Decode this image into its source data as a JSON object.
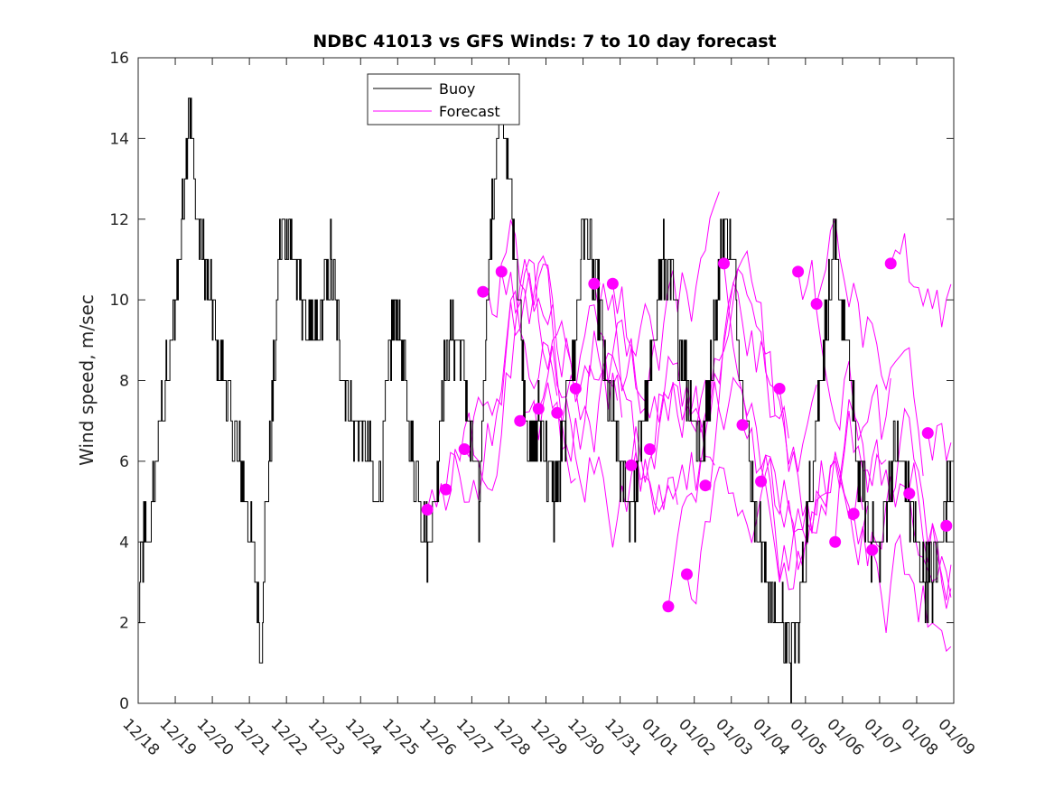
{
  "colors": {
    "buoy": "#000000",
    "forecast": "#ff00ff",
    "axes": "#262626",
    "background": "#ffffff"
  },
  "chart_data": {
    "type": "line",
    "title": "NDBC 41013 vs GFS Winds: 7 to 10 day forecast",
    "xlabel": "",
    "ylabel": "Wind speed, m/sec",
    "xlim": [
      0,
      22
    ],
    "ylim": [
      0,
      16
    ],
    "x_unit": "days since 12/18 00:00",
    "x_tick_labels": [
      "12/18",
      "12/19",
      "12/20",
      "12/21",
      "12/22",
      "12/23",
      "12/24",
      "12/25",
      "12/26",
      "12/27",
      "12/28",
      "12/29",
      "12/30",
      "12/31",
      "01/01",
      "01/02",
      "01/03",
      "01/04",
      "01/05",
      "01/06",
      "01/07",
      "01/08",
      "01/09"
    ],
    "y_ticks": [
      0,
      2,
      4,
      6,
      8,
      10,
      12,
      14,
      16
    ],
    "legend": {
      "position": "top-center",
      "entries": [
        "Buoy",
        "Forecast"
      ]
    },
    "buoy_keyframes": {
      "name": "Buoy",
      "x": [
        0.0,
        0.1,
        0.25,
        0.4,
        0.6,
        0.8,
        1.0,
        1.2,
        1.35,
        1.5,
        1.6,
        1.75,
        1.9,
        2.1,
        2.3,
        2.5,
        2.7,
        2.9,
        3.05,
        3.2,
        3.3,
        3.4,
        3.6,
        3.8,
        4.0,
        4.2,
        4.4,
        4.6,
        4.8,
        5.0,
        5.2,
        5.4,
        5.6,
        5.8,
        6.0,
        6.2,
        6.4,
        6.6,
        6.8,
        7.0,
        7.2,
        7.4,
        7.6,
        7.8,
        8.0,
        8.2,
        8.4,
        8.6,
        8.8,
        9.0,
        9.2,
        9.4,
        9.6,
        9.8,
        10.0,
        10.2,
        10.4,
        10.6,
        10.8,
        11.0,
        11.2,
        11.4,
        11.6,
        11.8,
        12.0,
        12.2,
        12.4,
        12.6,
        12.8,
        13.0,
        13.2,
        13.4,
        13.6,
        13.8,
        14.0,
        14.2,
        14.4,
        14.6,
        14.8,
        15.0,
        15.2,
        15.4,
        15.6,
        15.8,
        16.0,
        16.2,
        16.4,
        16.6,
        16.8,
        17.0,
        17.2,
        17.4,
        17.6,
        17.8,
        18.0,
        18.2,
        18.4,
        18.6,
        18.8,
        19.0,
        19.2,
        19.4,
        19.6,
        19.8,
        20.0,
        20.2,
        20.4,
        20.6,
        20.8,
        21.0,
        21.2,
        21.4,
        21.6,
        21.8,
        22.0
      ],
      "y": [
        2,
        4,
        4,
        5,
        7,
        8,
        10,
        12,
        15,
        13,
        12,
        11,
        10,
        9,
        8,
        7,
        6,
        5,
        4,
        3,
        1,
        4,
        7,
        11,
        12,
        11,
        10,
        9,
        9,
        10,
        11,
        9,
        8,
        7,
        7,
        6,
        5,
        6,
        9,
        10,
        8,
        6,
        5,
        4,
        5,
        8,
        9,
        9,
        8,
        6,
        5,
        10,
        13,
        15,
        13,
        11,
        8,
        6,
        7,
        6,
        5,
        6,
        8,
        9,
        12,
        11,
        10,
        8,
        7,
        6,
        5,
        5,
        7,
        8,
        10,
        11,
        10,
        9,
        8,
        7,
        6,
        8,
        10,
        12,
        11,
        9,
        7,
        5,
        4,
        3,
        2,
        2,
        1,
        2,
        4,
        6,
        8,
        10,
        11,
        10,
        8,
        6,
        5,
        4,
        4,
        5,
        6,
        6,
        5,
        4,
        3,
        3,
        4,
        5,
        6
      ]
    },
    "forecast_markers": {
      "name": "Forecast",
      "x": [
        7.8,
        8.3,
        8.8,
        9.3,
        9.8,
        10.3,
        10.8,
        11.3,
        11.8,
        12.3,
        12.8,
        13.3,
        13.8,
        14.3,
        14.8,
        15.3,
        15.8,
        16.3,
        16.8,
        17.3,
        17.8,
        18.3,
        18.8,
        19.3,
        19.8,
        20.3,
        20.8,
        21.3
      ],
      "y": [
        4.8,
        5.3,
        6.3,
        10.2,
        10.7,
        7.0,
        7.3,
        7.2,
        7.8,
        10.4,
        10.4,
        5.9,
        6.3,
        2.4,
        3.2,
        5.4,
        10.9,
        6.9,
        5.5,
        7.8,
        10.7,
        9.9,
        4.0,
        4.7,
        3.8,
        10.9,
        5.2,
        6.7
      ]
    },
    "forecast_extra_marker": {
      "x": 21.8,
      "y": 4.4
    }
  }
}
